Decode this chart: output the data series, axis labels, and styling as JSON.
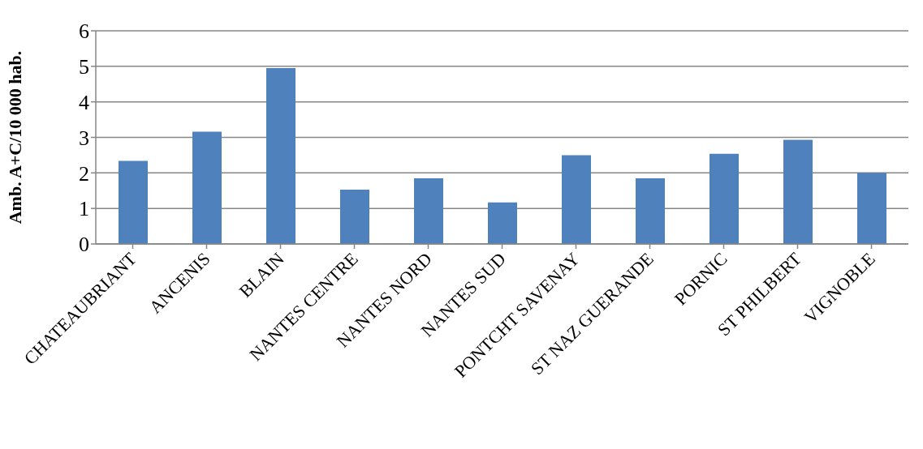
{
  "chart_data": {
    "type": "bar",
    "ylabel": "Amb. A+C/10 000 hab.",
    "categories": [
      "CHATEAUBRIANT",
      "ANCENIS",
      "BLAIN",
      "NANTES CENTRE",
      "NANTES NORD",
      "NANTES SUD",
      "PONTCHT SAVENAY",
      "ST NAZ GUERANDE",
      "PORNIC",
      "ST PHILBERT",
      "VIGNOBLE"
    ],
    "values": [
      2.34,
      3.16,
      4.95,
      1.53,
      1.85,
      1.17,
      2.5,
      1.85,
      2.54,
      2.93,
      2.0
    ],
    "color": "#4f81bd",
    "ylim": [
      0,
      6
    ],
    "yticks": [
      0,
      1,
      2,
      3,
      4,
      5,
      6
    ],
    "grid": "y"
  }
}
